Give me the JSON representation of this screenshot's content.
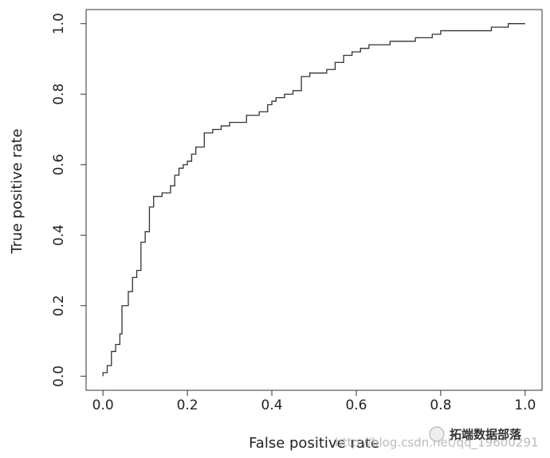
{
  "chart_data": {
    "type": "line",
    "x_label": "False positive rate",
    "y_label": "True positive rate",
    "color": "#333333",
    "x": [
      0,
      0,
      0.01,
      0.01,
      0.02,
      0.02,
      0.03,
      0.03,
      0.04,
      0.04,
      0.045,
      0.045,
      0.06,
      0.06,
      0.07,
      0.07,
      0.08,
      0.08,
      0.09,
      0.09,
      0.1,
      0.1,
      0.11,
      0.11,
      0.12,
      0.12,
      0.14,
      0.14,
      0.16,
      0.16,
      0.17,
      0.17,
      0.18,
      0.18,
      0.19,
      0.19,
      0.2,
      0.2,
      0.21,
      0.21,
      0.22,
      0.22,
      0.24,
      0.24,
      0.26,
      0.26,
      0.28,
      0.28,
      0.3,
      0.3,
      0.34,
      0.34,
      0.37,
      0.37,
      0.39,
      0.39,
      0.4,
      0.4,
      0.41,
      0.41,
      0.43,
      0.43,
      0.45,
      0.45,
      0.47,
      0.47,
      0.49,
      0.49,
      0.53,
      0.53,
      0.55,
      0.55,
      0.57,
      0.57,
      0.59,
      0.59,
      0.61,
      0.61,
      0.63,
      0.63,
      0.68,
      0.68,
      0.74,
      0.74,
      0.78,
      0.78,
      0.8,
      0.8,
      0.92,
      0.92,
      0.96,
      0.96,
      1
    ],
    "values": [
      0,
      0.01,
      0.01,
      0.03,
      0.03,
      0.07,
      0.07,
      0.09,
      0.09,
      0.12,
      0.12,
      0.2,
      0.2,
      0.24,
      0.24,
      0.28,
      0.28,
      0.3,
      0.3,
      0.38,
      0.38,
      0.41,
      0.41,
      0.48,
      0.48,
      0.51,
      0.51,
      0.52,
      0.52,
      0.54,
      0.54,
      0.57,
      0.57,
      0.59,
      0.59,
      0.6,
      0.6,
      0.61,
      0.61,
      0.63,
      0.63,
      0.65,
      0.65,
      0.69,
      0.69,
      0.7,
      0.7,
      0.71,
      0.71,
      0.72,
      0.72,
      0.74,
      0.74,
      0.75,
      0.75,
      0.77,
      0.77,
      0.78,
      0.78,
      0.79,
      0.79,
      0.8,
      0.8,
      0.81,
      0.81,
      0.85,
      0.85,
      0.86,
      0.86,
      0.87,
      0.87,
      0.89,
      0.89,
      0.91,
      0.91,
      0.92,
      0.92,
      0.93,
      0.93,
      0.94,
      0.94,
      0.95,
      0.95,
      0.96,
      0.96,
      0.97,
      0.97,
      0.98,
      0.98,
      0.99,
      0.99,
      1,
      1
    ],
    "xlim": [
      -0.04,
      1.04
    ],
    "ylim": [
      -0.04,
      1.04
    ],
    "xticks": [
      {
        "value": 0,
        "label": "0.0"
      },
      0.2,
      0.4,
      0.6,
      0.8,
      {
        "value": 1,
        "label": "1.0"
      }
    ],
    "yticks": [
      {
        "value": 0,
        "label": "0.0"
      },
      0.2,
      0.4,
      0.6,
      0.8,
      {
        "value": 1,
        "label": "1.0"
      }
    ],
    "watermark": "拓端数据部落",
    "watermark_url": "http://blog.csdn.net/qq_19600291"
  }
}
